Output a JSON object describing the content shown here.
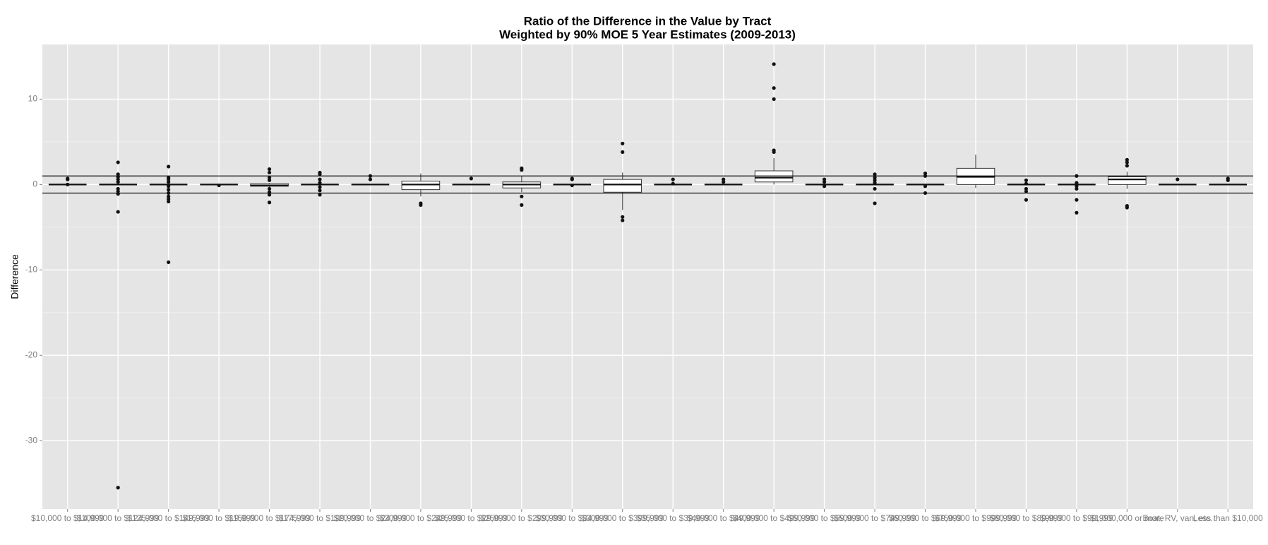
{
  "chart_data": {
    "type": "box",
    "title": [
      "Ratio of the Difference in the Value by Tract",
      "Weighted by 90% MOE 5 Year Estimates (2009-2013)"
    ],
    "y_label": "Difference",
    "categories": [
      "$10,000 to $14,999",
      "$100,000 to $124,999",
      "$125,000 to $149,999",
      "$15,000 to $19,999",
      "$150,000 to $174,999",
      "$175,000 to $199,999",
      "$20,000 to $24,999",
      "$200,000 to $249,999",
      "$25,000 to $29,999",
      "$250,000 to $299,999",
      "$30,000 to $34,999",
      "$300,000 to $399,999",
      "$35,000 to $39,999",
      "$40,000 to $49,999",
      "$400,000 to $499,999",
      "$50,000 to $59,999",
      "$500,000 to $749,999",
      "$60,000 to $69,999",
      "$750,000 to $999,999",
      "$80,000 to $89,999",
      "$90,000 to $99,999",
      "$1,000,000 or more",
      "Boat, RV, van, etc.",
      "Less than $10,000"
    ],
    "boxes": [
      {
        "low": 0,
        "q1": 0,
        "median": 0,
        "q3": 0,
        "high": 0,
        "outliers": [
          0.6,
          0.7,
          0
        ]
      },
      {
        "low": 0,
        "q1": 0,
        "median": 0,
        "q3": 0,
        "high": 0,
        "outliers": [
          2.6,
          1.2,
          0.9,
          0.6,
          0.3,
          -0.5,
          -0.8,
          -1.1,
          -3.2,
          -35.5
        ]
      },
      {
        "low": 0,
        "q1": 0,
        "median": 0,
        "q3": 0,
        "high": 0,
        "outliers": [
          2.1,
          0.8,
          0.6,
          0.3,
          -0.2,
          -0.6,
          -1,
          -1.4,
          -1.7,
          -2,
          -9.1
        ]
      },
      {
        "low": 0,
        "q1": 0,
        "median": 0,
        "q3": 0,
        "high": 0,
        "outliers": [
          -0.1
        ]
      },
      {
        "low": -0.3,
        "q1": -0.2,
        "median": -0.1,
        "q3": 0.1,
        "high": 0.2,
        "outliers": [
          1.8,
          1.4,
          0.8,
          0.5,
          -0.5,
          -0.9,
          -1.2,
          -2.1
        ]
      },
      {
        "low": 0,
        "q1": 0,
        "median": 0,
        "q3": 0,
        "high": 0,
        "outliers": [
          1.4,
          1.2,
          0.6,
          0.2,
          -0.3,
          -0.7,
          -1.2
        ]
      },
      {
        "low": 0,
        "q1": 0,
        "median": 0,
        "q3": 0,
        "high": 0,
        "outliers": [
          1.0,
          0.6
        ]
      },
      {
        "low": -1.4,
        "q1": -0.6,
        "median": 0,
        "q3": 0.4,
        "high": 1.3,
        "outliers": [
          -2.2,
          -2.4
        ]
      },
      {
        "low": 0,
        "q1": 0,
        "median": 0,
        "q3": 0,
        "high": 0,
        "outliers": [
          0.7
        ]
      },
      {
        "low": -0.9,
        "q1": -0.4,
        "median": 0,
        "q3": 0.3,
        "high": 1.0,
        "outliers": [
          1.9,
          1.7,
          -1.4,
          -2.4
        ]
      },
      {
        "low": 0,
        "q1": 0,
        "median": 0,
        "q3": 0,
        "high": 0,
        "outliers": [
          0.6,
          0.7,
          -0.1
        ]
      },
      {
        "low": -3.0,
        "q1": -0.9,
        "median": 0,
        "q3": 0.6,
        "high": 1.4,
        "outliers": [
          4.8,
          3.8,
          -3.8,
          -4.2
        ]
      },
      {
        "low": 0,
        "q1": 0,
        "median": 0,
        "q3": 0,
        "high": 0,
        "outliers": [
          0.6,
          0.1
        ]
      },
      {
        "low": 0,
        "q1": 0,
        "median": 0,
        "q3": 0,
        "high": 0,
        "outliers": [
          0.6,
          0.3
        ]
      },
      {
        "low": 0,
        "q1": 0.3,
        "median": 0.8,
        "q3": 1.6,
        "high": 3.1,
        "outliers": [
          14.1,
          11.3,
          10.0,
          4.0,
          3.8
        ]
      },
      {
        "low": 0,
        "q1": 0,
        "median": 0,
        "q3": 0,
        "high": 0,
        "outliers": [
          0.6,
          0.3,
          -0.2
        ]
      },
      {
        "low": 0,
        "q1": 0,
        "median": 0,
        "q3": 0,
        "high": 0,
        "outliers": [
          1.2,
          0.8,
          0.5,
          0.2,
          -0.5,
          -2.2
        ]
      },
      {
        "low": 0,
        "q1": 0,
        "median": 0,
        "q3": 0,
        "high": 0,
        "outliers": [
          1.3,
          1.0,
          -0.2,
          -1.0
        ]
      },
      {
        "low": -0.4,
        "q1": 0,
        "median": 0.9,
        "q3": 1.9,
        "high": 3.5,
        "outliers": []
      },
      {
        "low": 0,
        "q1": 0,
        "median": 0,
        "q3": 0,
        "high": 0,
        "outliers": [
          0.5,
          0.1,
          -0.5,
          -0.8,
          -1.8
        ]
      },
      {
        "low": 0,
        "q1": 0,
        "median": 0,
        "q3": 0,
        "high": 0,
        "outliers": [
          1.0,
          0.2,
          -0.2,
          -0.5,
          -1.8,
          -3.3
        ]
      },
      {
        "low": -0.5,
        "q1": 0,
        "median": 0.6,
        "q3": 0.9,
        "high": 1.5,
        "outliers": [
          2.9,
          2.6,
          2.2,
          -2.5,
          -2.7
        ]
      },
      {
        "low": 0,
        "q1": 0,
        "median": 0,
        "q3": 0,
        "high": 0,
        "outliers": [
          0.6
        ]
      },
      {
        "low": 0,
        "q1": 0,
        "median": 0,
        "q3": 0,
        "high": 0,
        "outliers": [
          0.7,
          0.5
        ]
      }
    ],
    "hlines": [
      1,
      -1
    ],
    "ylim": [
      -38,
      16.4
    ],
    "yticks": [
      -30,
      -20,
      -10,
      0,
      10
    ],
    "grid": true
  }
}
